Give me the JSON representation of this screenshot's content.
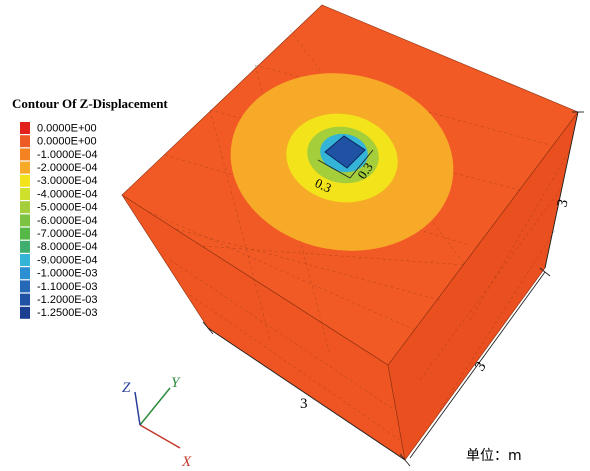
{
  "legend": {
    "title": "Contour Of Z-Displacement",
    "entries": [
      {
        "label": "0.0000E+00",
        "color": "#e3211c"
      },
      {
        "label": "0.0000E+00",
        "color": "#ee5a26"
      },
      {
        "label": "-1.0000E-04",
        "color": "#f58220"
      },
      {
        "label": "-2.0000E-04",
        "color": "#f7a928"
      },
      {
        "label": "-3.0000E-04",
        "color": "#f3e31b"
      },
      {
        "label": "-4.0000E-04",
        "color": "#cfe02c"
      },
      {
        "label": "-5.0000E-04",
        "color": "#a4cf3a"
      },
      {
        "label": "-6.0000E-04",
        "color": "#7cc243"
      },
      {
        "label": "-7.0000E-04",
        "color": "#55b848"
      },
      {
        "label": "-8.0000E-04",
        "color": "#3fae6e"
      },
      {
        "label": "-9.0000E-04",
        "color": "#34b4d6"
      },
      {
        "label": "-1.0000E-03",
        "color": "#2c8fd1"
      },
      {
        "label": "-1.1000E-03",
        "color": "#2468b6"
      },
      {
        "label": "-1.2000E-03",
        "color": "#1f52a2"
      },
      {
        "label": "-1.2500E-03",
        "color": "#1b3f90"
      }
    ]
  },
  "dimensions": {
    "front": "3",
    "right": "3",
    "height": "3",
    "pile_a": "0.3",
    "pile_b": "0.3"
  },
  "axes": {
    "x": "X",
    "y": "Y",
    "z": "Z"
  },
  "unit": "单位：m"
}
